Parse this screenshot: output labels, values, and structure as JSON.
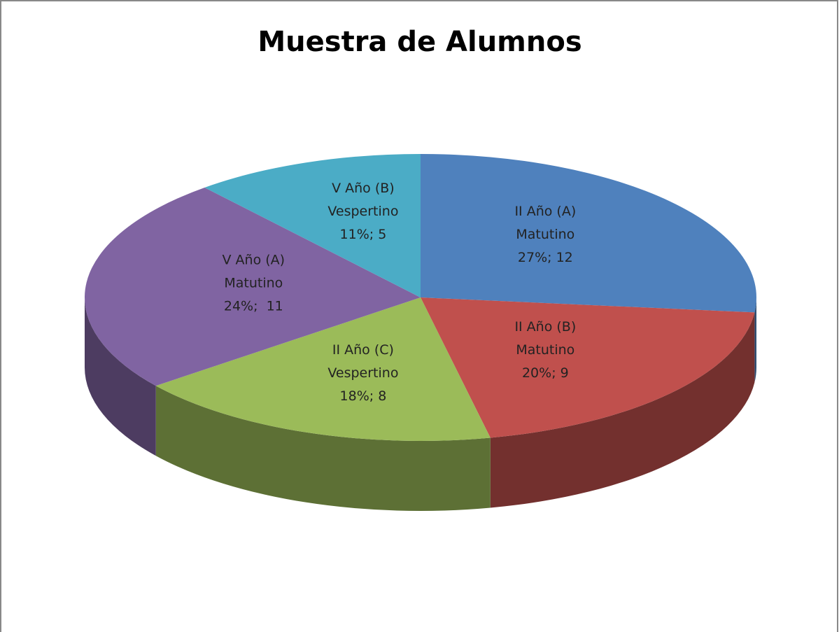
{
  "chart_data": {
    "type": "pie",
    "title": "Muestra de Alumnos",
    "categories": [
      [
        "II Año (A)",
        "Matutino"
      ],
      [
        "II Año (B)",
        "Matutino"
      ],
      [
        "II Año (C)",
        "Vespertino"
      ],
      [
        "V Año (A)",
        "Matutino"
      ],
      [
        "V Año (B)",
        "Vespertino"
      ]
    ],
    "values": [
      12,
      9,
      8,
      11,
      5
    ],
    "value_labels": [
      "27%; 12",
      "20%; 9",
      "18%; 8",
      "24%;  11",
      "11%; 5"
    ],
    "colors": [
      "#4f81bd",
      "#c0504d",
      "#9bbb59",
      "#8064a2",
      "#4bacc6"
    ]
  }
}
